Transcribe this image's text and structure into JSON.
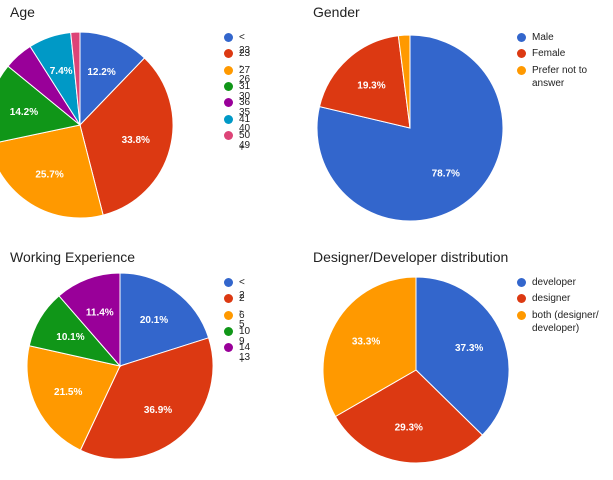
{
  "chart_data": [
    {
      "type": "pie",
      "title": "Age",
      "categories": [
        "< 23",
        "23 - 26",
        "27 - 30",
        "31 - 35",
        "36 - 40",
        "41 - 49",
        "50 +"
      ],
      "values": [
        12.2,
        33.8,
        25.7,
        14.2,
        5.1,
        7.4,
        1.6
      ],
      "labels": [
        "12.2%",
        "33.8%",
        "25.7%",
        "14.2%",
        "",
        "7.4%",
        ""
      ],
      "colors": [
        "#3366cc",
        "#dc3912",
        "#ff9900",
        "#109618",
        "#990099",
        "#0099c6",
        "#dd4477"
      ],
      "legend": "right"
    },
    {
      "type": "pie",
      "title": "Gender",
      "categories": [
        "Male",
        "Female",
        "Prefer not to answer"
      ],
      "values": [
        78.7,
        19.3,
        2.0
      ],
      "labels": [
        "78.7%",
        "19.3%",
        ""
      ],
      "colors": [
        "#3366cc",
        "#dc3912",
        "#ff9900"
      ],
      "legend": "right"
    },
    {
      "type": "pie",
      "title": "Working Experience",
      "categories": [
        "< 2",
        "2 - 5",
        "6 - 9",
        "10 - 13",
        "14 +"
      ],
      "values": [
        20.1,
        36.9,
        21.5,
        10.1,
        11.4
      ],
      "labels": [
        "20.1%",
        "36.9%",
        "21.5%",
        "10.1%",
        "11.4%"
      ],
      "colors": [
        "#3366cc",
        "#dc3912",
        "#ff9900",
        "#109618",
        "#990099"
      ],
      "legend": "right"
    },
    {
      "type": "pie",
      "title": "Designer/Developer distribution",
      "categories": [
        "developer",
        "designer",
        "both (designer/ developer)"
      ],
      "values": [
        37.3,
        29.3,
        33.3
      ],
      "labels": [
        "37.3%",
        "29.3%",
        "33.3%"
      ],
      "colors": [
        "#3366cc",
        "#dc3912",
        "#ff9900"
      ],
      "legend": "right"
    }
  ]
}
